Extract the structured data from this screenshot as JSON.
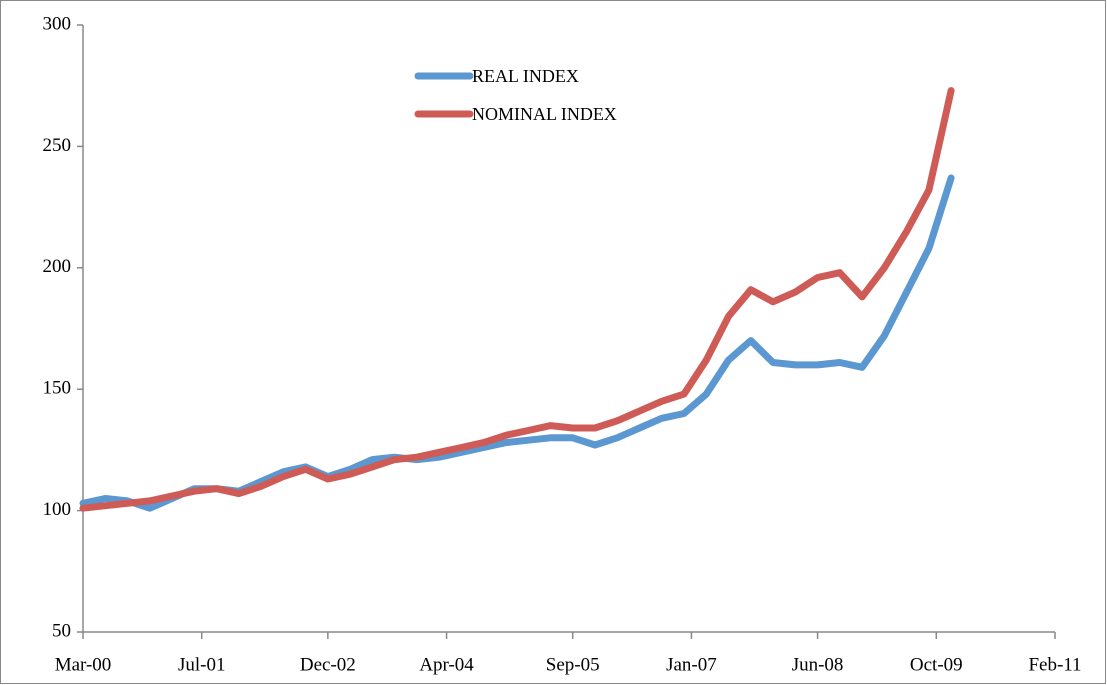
{
  "chart_data": {
    "type": "line",
    "x": [
      "2000-03",
      "2000-06",
      "2000-09",
      "2000-12",
      "2001-03",
      "2001-06",
      "2001-09",
      "2001-12",
      "2002-03",
      "2002-06",
      "2002-09",
      "2002-12",
      "2003-03",
      "2003-06",
      "2003-09",
      "2003-12",
      "2004-03",
      "2004-06",
      "2004-09",
      "2004-12",
      "2005-03",
      "2005-06",
      "2005-09",
      "2005-12",
      "2006-03",
      "2006-06",
      "2006-09",
      "2006-12",
      "2007-03",
      "2007-06",
      "2007-09",
      "2007-12",
      "2008-03",
      "2008-06",
      "2008-09",
      "2008-12",
      "2009-03",
      "2009-06",
      "2009-09",
      "2009-12"
    ],
    "series": [
      {
        "name": "REAL INDEX",
        "color": "#5b97d0",
        "values": [
          103,
          105,
          104,
          101,
          105,
          109,
          109,
          108,
          112,
          116,
          118,
          114,
          117,
          121,
          122,
          121,
          122,
          124,
          126,
          128,
          129,
          130,
          130,
          127,
          130,
          134,
          138,
          140,
          148,
          162,
          170,
          161,
          160,
          160,
          161,
          159,
          172,
          190,
          208,
          237
        ]
      },
      {
        "name": "NOMINAL INDEX",
        "color": "#cf5b56",
        "values": [
          101,
          102,
          103,
          104,
          106,
          108,
          109,
          107,
          110,
          114,
          117,
          113,
          115,
          118,
          121,
          122,
          124,
          126,
          128,
          131,
          133,
          135,
          134,
          134,
          137,
          141,
          145,
          148,
          162,
          180,
          191,
          186,
          190,
          196,
          198,
          188,
          200,
          215,
          232,
          273
        ]
      }
    ],
    "xlim": [
      "2000-03",
      "2011-02"
    ],
    "xticks": [
      {
        "value": "2000-03",
        "label": "Mar-00"
      },
      {
        "value": "2001-07",
        "label": "Jul-01"
      },
      {
        "value": "2002-12",
        "label": "Dec-02"
      },
      {
        "value": "2004-04",
        "label": "Apr-04"
      },
      {
        "value": "2005-09",
        "label": "Sep-05"
      },
      {
        "value": "2007-01",
        "label": "Jan-07"
      },
      {
        "value": "2008-06",
        "label": "Jun-08"
      },
      {
        "value": "2009-10",
        "label": "Oct-09"
      },
      {
        "value": "2011-02",
        "label": "Feb-11"
      }
    ],
    "ylim": [
      50,
      300
    ],
    "yticks": [
      50,
      100,
      150,
      200,
      250,
      300
    ],
    "legend": "top"
  }
}
